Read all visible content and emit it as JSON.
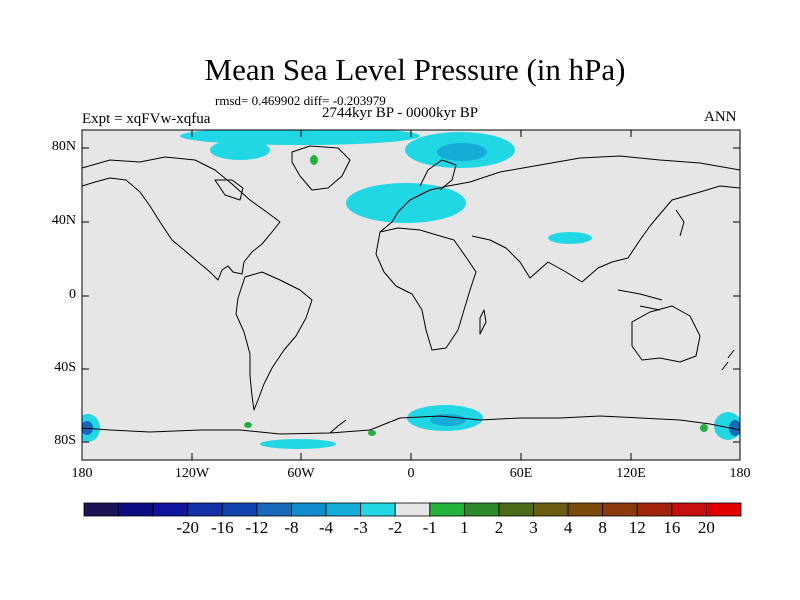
{
  "title": "Mean Sea Level Pressure (in hPa)",
  "stats": "rmsd= 0.469902 diff= -0.203979",
  "period": "2744kyr BP - 0000kyr BP",
  "experiment": "Expt = xqFVw-xqfua",
  "season": "ANN",
  "map": {
    "lat_ticks": [
      "80N",
      "40N",
      "0",
      "40S",
      "80S"
    ],
    "lon_ticks": [
      "180",
      "120W",
      "60W",
      "0",
      "60E",
      "120E",
      "180"
    ],
    "background_color": "#e6e6e6"
  },
  "colorbar": {
    "labels": [
      "-20",
      "-16",
      "-12",
      "-8",
      "-4",
      "-3",
      "-2",
      "-1",
      "1",
      "2",
      "3",
      "4",
      "8",
      "12",
      "16",
      "20"
    ],
    "colors": [
      "#1e1256",
      "#0e0e82",
      "#10139b",
      "#1430a6",
      "#1145ad",
      "#1769b9",
      "#0e8ccc",
      "#16acd8",
      "#22d7e4",
      "#e6e6e6",
      "#23b23c",
      "#2d8a2a",
      "#4a6b1a",
      "#6a5d12",
      "#7b4a0a",
      "#8a3a0b",
      "#a4230d",
      "#c40f0e",
      "#e00000"
    ]
  }
}
